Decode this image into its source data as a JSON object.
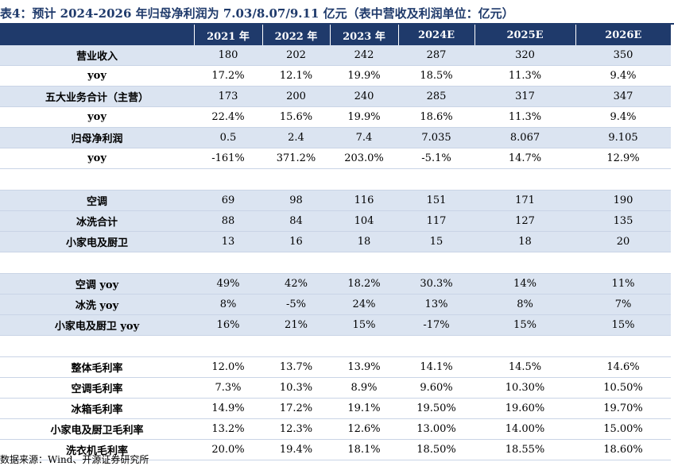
{
  "title": "表4：预计 2024-2026 年归母净利润为 7.03/8.07/9.11 亿元（表中营收及利润单位：亿元）",
  "headers": [
    "",
    "2021 年",
    "2022 年",
    "2023 年",
    "2024E",
    "2025E",
    "2026E"
  ],
  "rows": [
    {
      "label": "营业收入",
      "values": [
        "180",
        "202",
        "242",
        "287",
        "320",
        "350"
      ],
      "shade": true
    },
    {
      "label": "yoy",
      "values": [
        "17.2%",
        "12.1%",
        "19.9%",
        "18.5%",
        "11.3%",
        "9.4%"
      ],
      "shade": false
    },
    {
      "label": "五大业务合计（主营）",
      "values": [
        "173",
        "200",
        "240",
        "285",
        "317",
        "347"
      ],
      "shade": true
    },
    {
      "label": "yoy",
      "values": [
        "22.4%",
        "15.6%",
        "19.9%",
        "18.6%",
        "11.3%",
        "9.4%"
      ],
      "shade": false
    },
    {
      "label": "归母净利润",
      "values": [
        "0.5",
        "2.4",
        "7.4",
        "7.035",
        "8.067",
        "9.105"
      ],
      "shade": true
    },
    {
      "label": "yoy",
      "values": [
        "-161%",
        "371.2%",
        "203.0%",
        "-5.1%",
        "14.7%",
        "12.9%"
      ],
      "shade": false
    },
    {
      "spacer": true
    },
    {
      "label": "空调",
      "values": [
        "69",
        "98",
        "116",
        "151",
        "171",
        "190"
      ],
      "shade": true
    },
    {
      "label": "冰洗合计",
      "values": [
        "88",
        "84",
        "104",
        "117",
        "127",
        "135"
      ],
      "shade": true
    },
    {
      "label": "小家电及厨卫",
      "values": [
        "13",
        "16",
        "18",
        "15",
        "18",
        "20"
      ],
      "shade": true
    },
    {
      "spacer": true
    },
    {
      "label": "空调 yoy",
      "values": [
        "49%",
        "42%",
        "18.2%",
        "30.3%",
        "14%",
        "11%"
      ],
      "shade": true
    },
    {
      "label": "冰洗 yoy",
      "values": [
        "8%",
        "-5%",
        "24%",
        "13%",
        "8%",
        "7%"
      ],
      "shade": true
    },
    {
      "label": "小家电及厨卫 yoy",
      "values": [
        "16%",
        "21%",
        "15%",
        "-17%",
        "15%",
        "15%"
      ],
      "shade": true
    },
    {
      "spacer": true
    },
    {
      "label": "整体毛利率",
      "values": [
        "12.0%",
        "13.7%",
        "13.9%",
        "14.1%",
        "14.5%",
        "14.6%"
      ],
      "shade": false
    },
    {
      "label": "空调毛利率",
      "values": [
        "7.3%",
        "10.3%",
        "8.9%",
        "9.60%",
        "10.30%",
        "10.50%"
      ],
      "shade": false
    },
    {
      "label": "冰箱毛利率",
      "values": [
        "14.9%",
        "17.2%",
        "19.1%",
        "19.50%",
        "19.60%",
        "19.70%"
      ],
      "shade": false
    },
    {
      "label": "小家电及厨卫毛利率",
      "values": [
        "13.2%",
        "12.3%",
        "12.6%",
        "13.00%",
        "14.00%",
        "15.00%"
      ],
      "shade": false
    },
    {
      "label": "洗衣机毛利率",
      "values": [
        "20.0%",
        "19.4%",
        "18.1%",
        "18.50%",
        "18.55%",
        "18.60%"
      ],
      "shade": false
    }
  ],
  "footer": "数据来源：Wind、开源证券研究所"
}
